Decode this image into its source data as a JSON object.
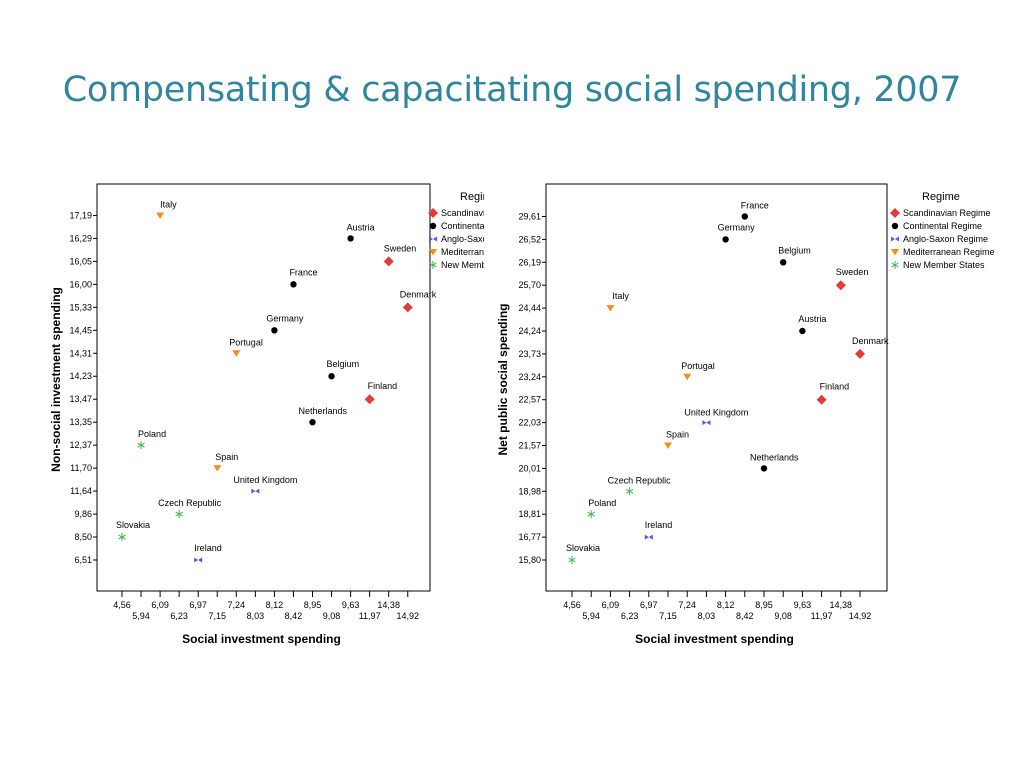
{
  "slide": {
    "title": "Compensating & capacitating social spending, 2007"
  },
  "colors": {
    "Scandinavian Regime": "#e23b3b",
    "Continental Regime": "#000000",
    "Anglo-Saxon Regime": "#4a5de0",
    "Mediterranean Regime": "#f0901e",
    "New Member States": "#3cb44b"
  },
  "chart_data": [
    {
      "type": "scatter",
      "xlabel": "Social investment spending",
      "ylabel": "Non-social investment spending",
      "legend_title": "Regime",
      "legend": [
        "Scandinavian Regime",
        "Continental Regime",
        "Anglo-Saxon Regime",
        "Mediterranean Regime",
        "New Member States"
      ],
      "x_categories": [
        "4,56",
        "5,94",
        "6,09",
        "6,23",
        "6,97",
        "7,15",
        "7,24",
        "8,03",
        "8,12",
        "8,42",
        "8,95",
        "9,08",
        "9,63",
        "11,97",
        "14,38",
        "14,92"
      ],
      "y_categories": [
        "6,51",
        "8,50",
        "9,86",
        "11,64",
        "11,70",
        "12,37",
        "13,35",
        "13,47",
        "14,23",
        "14,31",
        "14,45",
        "15,33",
        "16,00",
        "16,05",
        "16,29",
        "17,19"
      ],
      "points": [
        {
          "name": "Italy",
          "regime": "Mediterranean Regime",
          "x": "6,09",
          "y": "17,19"
        },
        {
          "name": "Austria",
          "regime": "Continental Regime",
          "x": "9,63",
          "y": "16,29"
        },
        {
          "name": "Sweden",
          "regime": "Scandinavian Regime",
          "x": "14,38",
          "y": "16,05"
        },
        {
          "name": "France",
          "regime": "Continental Regime",
          "x": "8,42",
          "y": "16,00"
        },
        {
          "name": "Denmark",
          "regime": "Scandinavian Regime",
          "x": "14,92",
          "y": "15,33"
        },
        {
          "name": "Germany",
          "regime": "Continental Regime",
          "x": "8,12",
          "y": "14,45"
        },
        {
          "name": "Portugal",
          "regime": "Mediterranean Regime",
          "x": "7,24",
          "y": "14,31"
        },
        {
          "name": "Belgium",
          "regime": "Continental Regime",
          "x": "9,08",
          "y": "14,23"
        },
        {
          "name": "Finland",
          "regime": "Scandinavian Regime",
          "x": "11,97",
          "y": "13,47"
        },
        {
          "name": "Netherlands",
          "regime": "Continental Regime",
          "x": "8,95",
          "y": "13,35"
        },
        {
          "name": "Poland",
          "regime": "New Member States",
          "x": "5,94",
          "y": "12,37"
        },
        {
          "name": "Spain",
          "regime": "Mediterranean Regime",
          "x": "7,15",
          "y": "11,70"
        },
        {
          "name": "United Kingdom",
          "regime": "Anglo-Saxon Regime",
          "x": "8,03",
          "y": "11,64"
        },
        {
          "name": "Czech Republic",
          "regime": "New Member States",
          "x": "6,23",
          "y": "9,86"
        },
        {
          "name": "Slovakia",
          "regime": "New Member States",
          "x": "4,56",
          "y": "8,50"
        },
        {
          "name": "Ireland",
          "regime": "Anglo-Saxon Regime",
          "x": "6,97",
          "y": "6,51"
        }
      ]
    },
    {
      "type": "scatter",
      "xlabel": "Social investment spending",
      "ylabel": "Net public social spending",
      "legend_title": "Regime",
      "legend": [
        "Scandinavian Regime",
        "Continental Regime",
        "Anglo-Saxon Regime",
        "Mediterranean Regime",
        "New Member States"
      ],
      "x_categories": [
        "4,56",
        "5,94",
        "6,09",
        "6,23",
        "6,97",
        "7,15",
        "7,24",
        "8,03",
        "8,12",
        "8,42",
        "8,95",
        "9,08",
        "9,63",
        "11,97",
        "14,38",
        "14,92"
      ],
      "y_categories": [
        "15,80",
        "16,77",
        "18,81",
        "18,98",
        "20,01",
        "21,57",
        "22,03",
        "22,57",
        "23,24",
        "23,73",
        "24,24",
        "24,44",
        "25,70",
        "26,19",
        "26,52",
        "29,61"
      ],
      "points": [
        {
          "name": "France",
          "regime": "Continental Regime",
          "x": "8,42",
          "y": "29,61"
        },
        {
          "name": "Germany",
          "regime": "Continental Regime",
          "x": "8,12",
          "y": "26,52"
        },
        {
          "name": "Belgium",
          "regime": "Continental Regime",
          "x": "9,08",
          "y": "26,19"
        },
        {
          "name": "Sweden",
          "regime": "Scandinavian Regime",
          "x": "14,38",
          "y": "25,70"
        },
        {
          "name": "Italy",
          "regime": "Mediterranean Regime",
          "x": "6,09",
          "y": "24,44"
        },
        {
          "name": "Austria",
          "regime": "Continental Regime",
          "x": "9,63",
          "y": "24,24"
        },
        {
          "name": "Denmark",
          "regime": "Scandinavian Regime",
          "x": "14,92",
          "y": "23,73"
        },
        {
          "name": "Portugal",
          "regime": "Mediterranean Regime",
          "x": "7,24",
          "y": "23,24"
        },
        {
          "name": "Finland",
          "regime": "Scandinavian Regime",
          "x": "11,97",
          "y": "22,57"
        },
        {
          "name": "United Kingdom",
          "regime": "Anglo-Saxon Regime",
          "x": "8,03",
          "y": "22,03"
        },
        {
          "name": "Spain",
          "regime": "Mediterranean Regime",
          "x": "7,15",
          "y": "21,57"
        },
        {
          "name": "Netherlands",
          "regime": "Continental Regime",
          "x": "8,95",
          "y": "20,01"
        },
        {
          "name": "Czech Republic",
          "regime": "New Member States",
          "x": "6,23",
          "y": "18,98"
        },
        {
          "name": "Poland",
          "regime": "New Member States",
          "x": "5,94",
          "y": "18,81"
        },
        {
          "name": "Ireland",
          "regime": "Anglo-Saxon Regime",
          "x": "6,97",
          "y": "16,77"
        },
        {
          "name": "Slovakia",
          "regime": "New Member States",
          "x": "4,56",
          "y": "15,80"
        }
      ]
    }
  ]
}
